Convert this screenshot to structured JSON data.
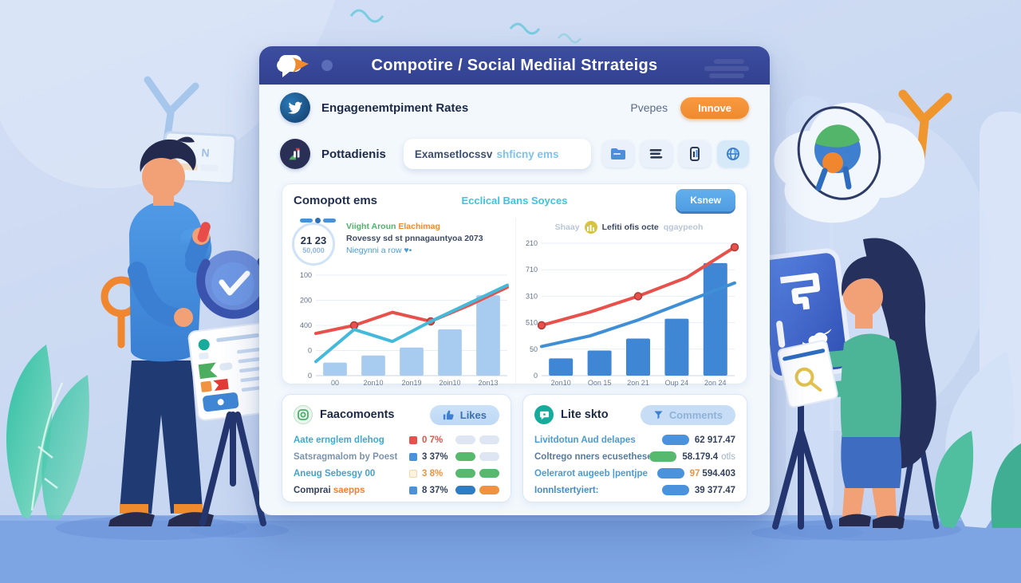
{
  "window": {
    "title": "Compotire / Social Mediial Strrateigs",
    "row1": {
      "label": "Engagenemtpiment Rates",
      "right_text": "Pvepes",
      "button": "Innove"
    },
    "row2": {
      "label": "Pottadienis",
      "search_value_dark": "Examsetlocssv",
      "search_value_blue": "shficny ems"
    }
  },
  "panel": {
    "title": "Comopott ems",
    "center_link": "Ecclical Bans Soyces",
    "button": "Ksnew"
  },
  "left_chart_meta": {
    "stat_value": "21 23",
    "stat_sub": "50,000",
    "line1_green": "Viight Aroun",
    "line1_orange": "Elachimag",
    "line2": "Rovessy sd st pnnagauntyoa 2073",
    "line3": "Niegynni a row ♥•"
  },
  "right_chart_meta": {
    "legend_gray": "Shaay",
    "legend_dark": "Lefiti ofis octe",
    "legend_gray2": "qgaypeoh"
  },
  "chart_data": [
    {
      "type": "bar",
      "name": "engagement-combo-chart",
      "x_labels": [
        "00",
        "2on10",
        "2on19",
        "2oin10",
        "2on13"
      ],
      "y_labels": [
        "100",
        "200",
        "400",
        "0",
        "0"
      ],
      "bars": [
        0.13,
        0.2,
        0.28,
        0.46,
        0.8
      ],
      "bar_color": "#a7ccf0",
      "lines": [
        {
          "name": "red-series",
          "color": "#e8514b",
          "points": [
            0.42,
            0.5,
            0.63,
            0.54,
            0.7,
            0.88
          ],
          "markers": [
            1,
            3
          ]
        },
        {
          "name": "cyan-series",
          "color": "#45b9da",
          "points": [
            0.14,
            0.46,
            0.34,
            0.54,
            0.72,
            0.9
          ],
          "markers": []
        }
      ]
    },
    {
      "type": "bar",
      "name": "growth-combo-chart",
      "x_labels": [
        "2on10",
        "Oon 15",
        "2on 21",
        "Oup 24",
        "2on 24"
      ],
      "y_labels": [
        "210",
        "710",
        "310",
        "510",
        "50",
        "0"
      ],
      "bars": [
        0.13,
        0.19,
        0.28,
        0.43,
        0.85
      ],
      "bar_color": "#3f86d4",
      "lines": [
        {
          "name": "red-series",
          "color": "#e8514b",
          "points": [
            0.38,
            0.48,
            0.6,
            0.74,
            0.97
          ],
          "markers": [
            0,
            2,
            4
          ]
        },
        {
          "name": "blue-series",
          "color": "#3f8fd6",
          "points": [
            0.22,
            0.3,
            0.42,
            0.56,
            0.7
          ],
          "markers": []
        }
      ]
    }
  ],
  "likes_panel": {
    "title": "Faacomoents",
    "button": "Likes",
    "rows": [
      {
        "label": "Aate ernglem dlehog",
        "label_color": "#3fa9c9",
        "square": "#e8514b",
        "square_border": "#e8514b",
        "pct": "0 7%",
        "pct_color": "#e8514b",
        "pills": [
          "#dde6f2",
          "#dde6f2"
        ]
      },
      {
        "label": "Satsragmalom by Poest",
        "label_color": "#7b93ad",
        "square": "#4a92dc",
        "square_border": "#4a92dc",
        "pct": "3 37%",
        "pct_color": "#33415c",
        "pills": [
          "#57b96e",
          "#dde6f2"
        ]
      },
      {
        "label": "Aneug Sebesgy 00",
        "label_color": "#4aa0cc",
        "square": "#fdf3e0",
        "square_border": "#f0d9ae",
        "pct": "3 8%",
        "pct_color": "#f0923e",
        "pills": [
          "#57b96e",
          "#57b96e"
        ]
      },
      {
        "label": "Comprai ",
        "label2": "saepps",
        "label_color": "#33415c",
        "label2_color": "#f07f3a",
        "square": "#4a92dc",
        "square_border": "#4a92dc",
        "pct": "8 37%",
        "pct_color": "#33415c",
        "pills": [
          "#2e7cc3",
          "#f0923e"
        ]
      }
    ]
  },
  "comments_panel": {
    "title": "Lite skto",
    "button": "Comments",
    "rows": [
      {
        "label": "Livitdotun Aud delapes",
        "label_color": "#4a9bd4",
        "pill": "#4a92dc",
        "accent": "",
        "accent_color": "",
        "value": "62 917.47",
        "value_color": "#33415c",
        "suffix": ""
      },
      {
        "label": "Coltrego nners ecusethesen",
        "label_color": "#5a7a9a",
        "pill": "#57b96e",
        "accent": "",
        "accent_color": "",
        "value": "58.179.4",
        "value_color": "#33415c",
        "suffix": "otls"
      },
      {
        "label": "Oelerarot augeeb |pentjpe",
        "label_color": "#4a9bd4",
        "pill": "#4a92dc",
        "accent": "97",
        "accent_color": "#f0923e",
        "value": "594.403",
        "value_color": "#33415c",
        "suffix": ""
      },
      {
        "label": "Ionnlstertyiert:",
        "label_color": "#4a8cc0",
        "pill": "#4a92dc",
        "accent": "",
        "accent_color": "",
        "value": "39 377.47",
        "value_color": "#33415c",
        "suffix": ""
      }
    ]
  },
  "icons": {
    "logo": "chat-bubble-with-orange-fox",
    "row1_avatar": "twitter-bird",
    "row2_avatar": "stats-hill",
    "toolbar": [
      "folder-icon",
      "list-bars-icon",
      "mobile-chart-icon",
      "globe-icon"
    ],
    "likes_button_icon": "thumbs-up",
    "comments_button_icon": "funnel",
    "colors": {
      "accent_orange": "#ef8a2d",
      "accent_blue": "#4f9ce2",
      "accent_cyan": "#3ec4de",
      "titlebar": "#32418f"
    }
  }
}
